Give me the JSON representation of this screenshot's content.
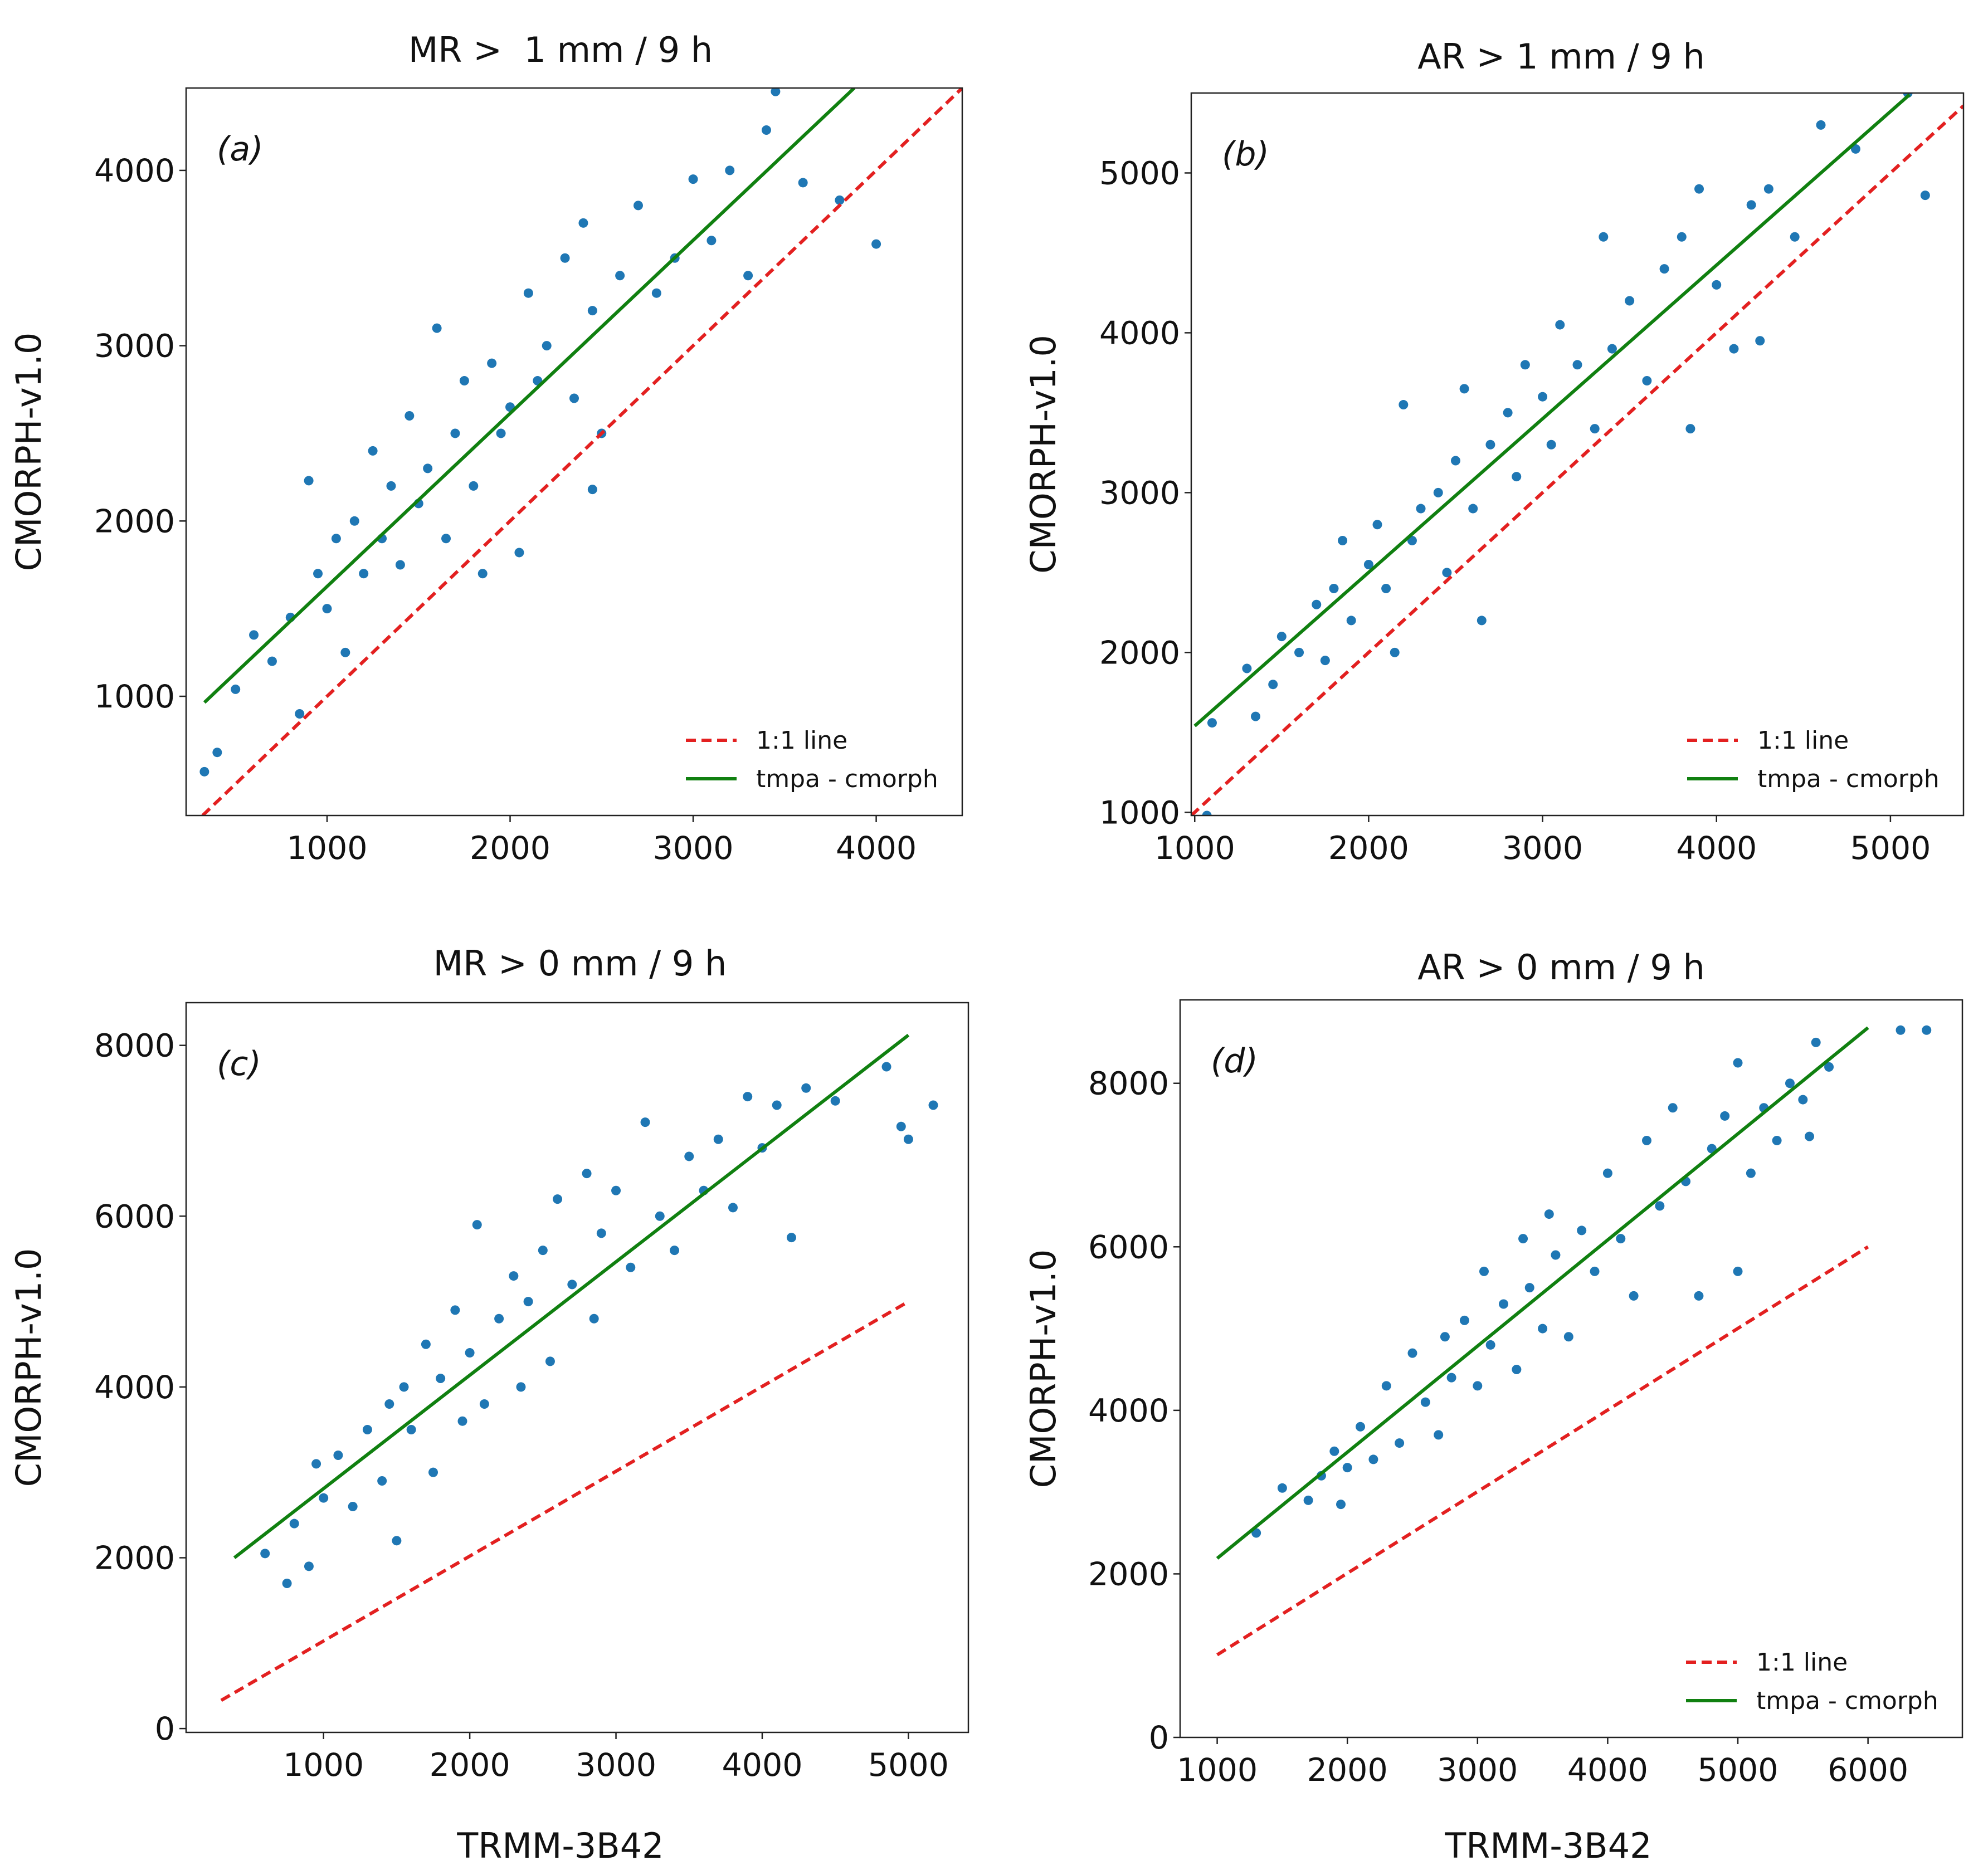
{
  "chart_data": [
    {
      "type": "scatter",
      "title": "MR >  1 mm / 9 h",
      "annotation": "(a)",
      "ylabel": "CMORPH-v1.0",
      "xlim": [
        230,
        4470
      ],
      "ylim": [
        320,
        4470
      ],
      "xticks": [
        1000,
        2000,
        3000,
        4000
      ],
      "yticks": [
        1000,
        2000,
        3000,
        4000
      ],
      "legend": "lower right",
      "series": [
        {
          "color": "#1f77b4",
          "x": [
            330,
            400,
            500,
            600,
            700,
            800,
            850,
            900,
            950,
            1000,
            1050,
            1100,
            1150,
            1200,
            1250,
            1300,
            1350,
            1400,
            1450,
            1500,
            1550,
            1600,
            1650,
            1700,
            1750,
            1800,
            1850,
            1900,
            1950,
            2000,
            2050,
            2100,
            2150,
            2200,
            2300,
            2350,
            2400,
            2450,
            2500,
            2600,
            2700,
            2800,
            2900,
            3000,
            3100,
            3200,
            3300,
            3400,
            3450,
            3600,
            3800,
            4000,
            2450
          ],
          "values": [
            570,
            680,
            1040,
            1350,
            1200,
            1450,
            900,
            2230,
            1700,
            1500,
            1900,
            1250,
            2000,
            1700,
            2400,
            1900,
            2200,
            1750,
            2600,
            2100,
            2300,
            3100,
            1900,
            2500,
            2800,
            2200,
            1700,
            2900,
            2500,
            2650,
            1820,
            3300,
            2800,
            3000,
            3500,
            2700,
            3700,
            3200,
            2500,
            3400,
            3800,
            3300,
            3500,
            3950,
            3600,
            4000,
            3400,
            4230,
            4450,
            3930,
            3830,
            3580,
            2180
          ]
        },
        {
          "name": "1:1 line",
          "color": "#e32020",
          "style": "dashed",
          "x": [
            320,
            4470
          ],
          "values": [
            320,
            4470
          ]
        },
        {
          "name": "tmpa - cmorph",
          "color": "#108010",
          "style": "solid",
          "x": [
            330,
            3880
          ],
          "values": [
            965,
            4470
          ]
        }
      ]
    },
    {
      "type": "scatter",
      "title": "AR > 1 mm / 9 h",
      "annotation": "(b)",
      "ylabel": "CMORPH-v1.0",
      "xlim": [
        980,
        5420
      ],
      "ylim": [
        980,
        5500
      ],
      "xticks": [
        1000,
        2000,
        3000,
        4000,
        5000
      ],
      "yticks": [
        1000,
        2000,
        3000,
        4000,
        5000
      ],
      "legend": "lower right",
      "series": [
        {
          "color": "#1f77b4",
          "x": [
            1070,
            1100,
            1300,
            1350,
            1450,
            1500,
            1600,
            1700,
            1750,
            1800,
            1850,
            1900,
            2000,
            2050,
            2100,
            2150,
            2200,
            2250,
            2300,
            2400,
            2450,
            2500,
            2550,
            2600,
            2650,
            2700,
            2800,
            2850,
            2900,
            3000,
            3050,
            3100,
            3200,
            3300,
            3350,
            3400,
            3500,
            3600,
            3700,
            3800,
            3850,
            3900,
            4000,
            4100,
            4200,
            4300,
            4450,
            4600,
            4800,
            5100,
            5200,
            4250
          ],
          "values": [
            980,
            1560,
            1900,
            1600,
            1800,
            2100,
            2000,
            2300,
            1950,
            2400,
            2700,
            2200,
            2550,
            2800,
            2400,
            2000,
            3550,
            2700,
            2900,
            3000,
            2500,
            3200,
            3650,
            2900,
            2200,
            3300,
            3500,
            3100,
            3800,
            3600,
            3300,
            4050,
            3800,
            3400,
            4600,
            3900,
            4200,
            3700,
            4400,
            4600,
            3400,
            4900,
            4300,
            3900,
            4800,
            4900,
            4600,
            5300,
            5150,
            5500,
            4860,
            3950
          ]
        },
        {
          "name": "1:1 line",
          "color": "#e32020",
          "style": "dashed",
          "x": [
            980,
            5420
          ],
          "values": [
            980,
            5420
          ]
        },
        {
          "name": "tmpa - cmorph",
          "color": "#108010",
          "style": "solid",
          "x": [
            1000,
            5110
          ],
          "values": [
            1540,
            5490
          ]
        }
      ]
    },
    {
      "type": "scatter",
      "title": "MR > 0 mm / 9 h",
      "annotation": "(c)",
      "ylabel": "CMORPH-v1.0",
      "xlabel": "TRMM-3B42",
      "xlim": [
        60,
        5410
      ],
      "ylim": [
        -45,
        8500
      ],
      "xticks": [
        1000,
        2000,
        3000,
        4000,
        5000
      ],
      "yticks": [
        0,
        2000,
        4000,
        6000,
        8000
      ],
      "series": [
        {
          "color": "#1f77b4",
          "x": [
            600,
            750,
            800,
            900,
            950,
            1000,
            1100,
            1200,
            1300,
            1400,
            1450,
            1500,
            1550,
            1600,
            1700,
            1750,
            1800,
            1900,
            1950,
            2000,
            2050,
            2100,
            2200,
            2300,
            2350,
            2400,
            2500,
            2550,
            2600,
            2700,
            2800,
            2850,
            2900,
            3000,
            3100,
            3200,
            3300,
            3400,
            3500,
            3600,
            3700,
            3800,
            3900,
            4000,
            4100,
            4200,
            4300,
            4500,
            4850,
            4950,
            5000,
            5170
          ],
          "values": [
            2050,
            1700,
            2400,
            1900,
            3100,
            2700,
            3200,
            2600,
            3500,
            2900,
            3800,
            2200,
            4000,
            3500,
            4500,
            3000,
            4100,
            4900,
            3600,
            4400,
            5900,
            3800,
            4800,
            5300,
            4000,
            5000,
            5600,
            4300,
            6200,
            5200,
            6500,
            4800,
            5800,
            6300,
            5400,
            7100,
            6000,
            5600,
            6700,
            6300,
            6900,
            6100,
            7400,
            6800,
            7300,
            5750,
            7500,
            7350,
            7750,
            7050,
            6900,
            7300
          ]
        },
        {
          "name": "1:1 line",
          "color": "#e32020",
          "style": "dashed",
          "x": [
            300,
            5000
          ],
          "values": [
            330,
            5000
          ]
        },
        {
          "name": "tmpa - cmorph",
          "color": "#108010",
          "style": "solid",
          "x": [
            390,
            5000
          ],
          "values": [
            2000,
            8120
          ]
        }
      ]
    },
    {
      "type": "scatter",
      "title": "AR > 0 mm / 9 h",
      "annotation": "(d)",
      "ylabel": "CMORPH-v1.0",
      "xlabel": "TRMM-3B42",
      "xlim": [
        715,
        6725
      ],
      "ylim": [
        0,
        9020
      ],
      "xticks": [
        1000,
        2000,
        3000,
        4000,
        5000,
        6000
      ],
      "yticks": [
        0,
        2000,
        4000,
        6000,
        8000
      ],
      "legend": "lower right",
      "series": [
        {
          "color": "#1f77b4",
          "x": [
            1300,
            1500,
            1700,
            1800,
            1900,
            1950,
            2000,
            2100,
            2200,
            2300,
            2400,
            2500,
            2600,
            2700,
            2750,
            2800,
            2900,
            3000,
            3050,
            3100,
            3200,
            3300,
            3350,
            3400,
            3500,
            3550,
            3600,
            3700,
            3800,
            3900,
            4000,
            4100,
            4200,
            4300,
            4400,
            4500,
            4600,
            4700,
            4800,
            4900,
            5000,
            5100,
            5200,
            5300,
            5400,
            5500,
            5550,
            5600,
            5700,
            6250,
            6450,
            5000
          ],
          "values": [
            2500,
            3050,
            2900,
            3200,
            3500,
            2850,
            3300,
            3800,
            3400,
            4300,
            3600,
            4700,
            4100,
            3700,
            4900,
            4400,
            5100,
            4300,
            5700,
            4800,
            5300,
            4500,
            6100,
            5500,
            5000,
            6400,
            5900,
            4900,
            6200,
            5700,
            6900,
            6100,
            5400,
            7300,
            6500,
            7700,
            6800,
            5400,
            7200,
            7600,
            8250,
            6900,
            7700,
            7300,
            8000,
            7800,
            7350,
            8500,
            8200,
            8650,
            8650,
            5700
          ]
        },
        {
          "name": "1:1 line",
          "color": "#e32020",
          "style": "dashed",
          "x": [
            1000,
            6000
          ],
          "values": [
            1010,
            6000
          ]
        },
        {
          "name": "tmpa - cmorph",
          "color": "#108010",
          "style": "solid",
          "x": [
            1000,
            6000
          ],
          "values": [
            2190,
            8680
          ]
        }
      ]
    }
  ]
}
